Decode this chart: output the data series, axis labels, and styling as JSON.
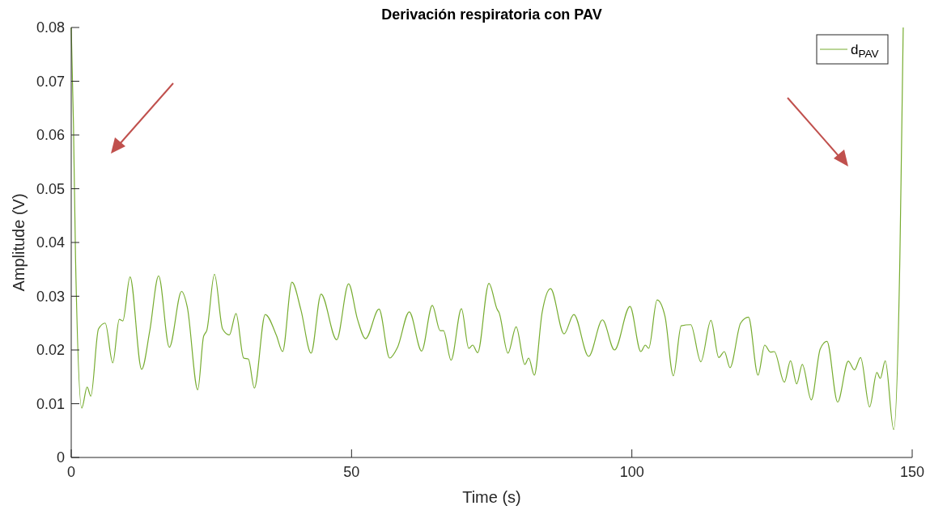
{
  "chart_data": {
    "type": "line",
    "title": "Derivación respiratoria con PAV",
    "xlabel": "Time (s)",
    "ylabel": "Amplitude (V)",
    "xlim": [
      0,
      150
    ],
    "ylim": [
      0,
      0.08
    ],
    "xticks": [
      0,
      50,
      100,
      150
    ],
    "yticks": [
      0,
      0.01,
      0.02,
      0.03,
      0.04,
      0.05,
      0.06,
      0.07,
      0.08
    ],
    "grid": false,
    "legend": "top right",
    "line_style": "solid",
    "marker": "none",
    "series": [
      {
        "name": "d$_{PAV}$",
        "color": "#77ac30",
        "x": [
          0,
          0.4,
          0.77,
          1.88,
          2.84,
          3.5,
          4.86,
          6.06,
          7.41,
          8.57,
          9.2,
          10.49,
          12.56,
          14.0,
          15.59,
          17.5,
          19.68,
          20.7,
          22.57,
          23.6,
          24.2,
          25.55,
          27.0,
          28.2,
          29.4,
          30.75,
          31.6,
          32.67,
          34.6,
          36.6,
          37.7,
          39.37,
          40.96,
          42.78,
          44.56,
          47.35,
          49.47,
          51.06,
          52.5,
          54.9,
          56.8,
          58.2,
          60.3,
          62.5,
          64.4,
          65.8,
          66.4,
          67.75,
          69.6,
          70.9,
          71.6,
          72.5,
          74.5,
          76.0,
          76.3,
          77.9,
          79.36,
          80.9,
          81.6,
          82.6,
          84.0,
          85.5,
          87.9,
          89.65,
          92.3,
          94.75,
          96.9,
          99.66,
          101.6,
          102.4,
          103.0,
          104.5,
          105.9,
          107.4,
          108.8,
          110.5,
          112.3,
          114.1,
          115.5,
          116.5,
          117.5,
          119.4,
          120.8,
          122.5,
          123.7,
          124.7,
          125.4,
          127.2,
          128.3,
          129.4,
          130.4,
          132.0,
          133.6,
          134.8,
          136.7,
          138.6,
          139.7,
          140.8,
          142.4,
          143.7,
          144.3,
          145.2,
          146.7,
          147.8,
          148.1,
          148.4
        ],
        "values": [
          0.08,
          0.062,
          0.037,
          0.0092,
          0.0131,
          0.0114,
          0.0239,
          0.025,
          0.0176,
          0.0257,
          0.0254,
          0.0336,
          0.0164,
          0.0235,
          0.0338,
          0.0205,
          0.0309,
          0.028,
          0.0126,
          0.0225,
          0.0237,
          0.0341,
          0.0239,
          0.0228,
          0.0268,
          0.0185,
          0.0183,
          0.0129,
          0.0266,
          0.0227,
          0.0197,
          0.0326,
          0.0275,
          0.0194,
          0.0304,
          0.0219,
          0.0323,
          0.0257,
          0.0221,
          0.0276,
          0.0185,
          0.0205,
          0.0271,
          0.0198,
          0.0283,
          0.0236,
          0.0236,
          0.0181,
          0.0277,
          0.0203,
          0.0209,
          0.0195,
          0.0324,
          0.0275,
          0.027,
          0.0194,
          0.0243,
          0.0173,
          0.0185,
          0.0153,
          0.027,
          0.0314,
          0.023,
          0.0266,
          0.0188,
          0.0256,
          0.02,
          0.0281,
          0.0197,
          0.0209,
          0.0203,
          0.0293,
          0.0263,
          0.0152,
          0.0245,
          0.0247,
          0.0178,
          0.0255,
          0.0186,
          0.0197,
          0.0167,
          0.025,
          0.0261,
          0.0153,
          0.0209,
          0.0196,
          0.0197,
          0.014,
          0.018,
          0.0137,
          0.0173,
          0.0107,
          0.0202,
          0.0216,
          0.0103,
          0.0179,
          0.0163,
          0.0186,
          0.0094,
          0.0158,
          0.0147,
          0.018,
          0.0052,
          0.037,
          0.058,
          0.08
        ]
      }
    ]
  }
}
